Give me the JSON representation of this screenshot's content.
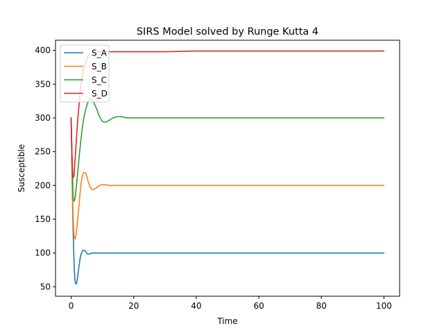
{
  "chart_data": {
    "type": "line",
    "title": "SIRS Model solved by Runge Kutta 4",
    "xlabel": "Time",
    "ylabel": "Susceptible",
    "xlim": [
      -5,
      105
    ],
    "ylim": [
      36,
      415
    ],
    "xticks": [
      0,
      20,
      40,
      60,
      80,
      100
    ],
    "yticks": [
      50,
      100,
      150,
      200,
      250,
      300,
      350,
      400
    ],
    "grid": false,
    "legend_position": "top-left",
    "series": [
      {
        "name": "S_A",
        "color": "#1f77b4",
        "x": [
          0,
          0.3,
          0.6,
          0.9,
          1.2,
          1.6,
          2.0,
          2.5,
          3.0,
          3.5,
          4.0,
          4.5,
          5.0,
          5.5,
          6.0,
          7.0,
          8.0,
          9.0,
          10.0,
          12.0,
          15.0,
          20.0,
          30.0,
          50.0,
          100.0
        ],
        "values": [
          300,
          210,
          140,
          90,
          62,
          54,
          62,
          80,
          95,
          102,
          104,
          103,
          100,
          98,
          99,
          100,
          100,
          100,
          100,
          100,
          100,
          100,
          100,
          100,
          100
        ]
      },
      {
        "name": "S_B",
        "color": "#ff7f0e",
        "x": [
          0,
          0.3,
          0.6,
          0.9,
          1.2,
          1.6,
          2.0,
          2.5,
          3.0,
          3.5,
          4.0,
          4.5,
          5.0,
          5.5,
          6.0,
          6.5,
          7.0,
          7.5,
          8.0,
          8.5,
          9.0,
          10.0,
          11.0,
          12.0,
          13.0,
          14.0,
          16.0,
          20.0,
          30.0,
          50.0,
          100.0
        ],
        "values": [
          300,
          220,
          160,
          128,
          121,
          128,
          145,
          170,
          195,
          212,
          219,
          219,
          214,
          205,
          199,
          195,
          194,
          195,
          196,
          198,
          200,
          201,
          201,
          200,
          200,
          200,
          200,
          200,
          200,
          200,
          200
        ]
      },
      {
        "name": "S_C",
        "color": "#2ca02c",
        "x": [
          0,
          0.3,
          0.6,
          0.9,
          1.2,
          1.6,
          2.0,
          2.5,
          3.0,
          3.5,
          4.0,
          5.0,
          6.0,
          7.0,
          8.0,
          9.0,
          10.0,
          11.0,
          12.0,
          13.0,
          14.0,
          15.0,
          16.0,
          18.0,
          20.0,
          25.0,
          30.0,
          50.0,
          100.0
        ],
        "values": [
          300,
          240,
          190,
          177,
          180,
          195,
          215,
          240,
          262,
          282,
          298,
          318,
          328,
          325,
          315,
          303,
          295,
          294,
          296,
          299,
          301,
          302,
          302,
          300,
          300,
          300,
          300,
          300,
          300
        ]
      },
      {
        "name": "S_D",
        "color": "#d62728",
        "x": [
          0,
          0.3,
          0.6,
          0.9,
          1.2,
          1.6,
          2.0,
          2.5,
          3.0,
          3.5,
          4.0,
          5.0,
          6.0,
          7.0,
          8.0,
          10.0,
          15.0,
          20.0,
          30.0,
          40.0,
          60.0,
          80.0,
          100.0
        ],
        "values": [
          300,
          240,
          212,
          215,
          235,
          262,
          290,
          318,
          342,
          360,
          372,
          387,
          394,
          396,
          397,
          398,
          398,
          398,
          398,
          399,
          399,
          399,
          399
        ]
      }
    ]
  }
}
